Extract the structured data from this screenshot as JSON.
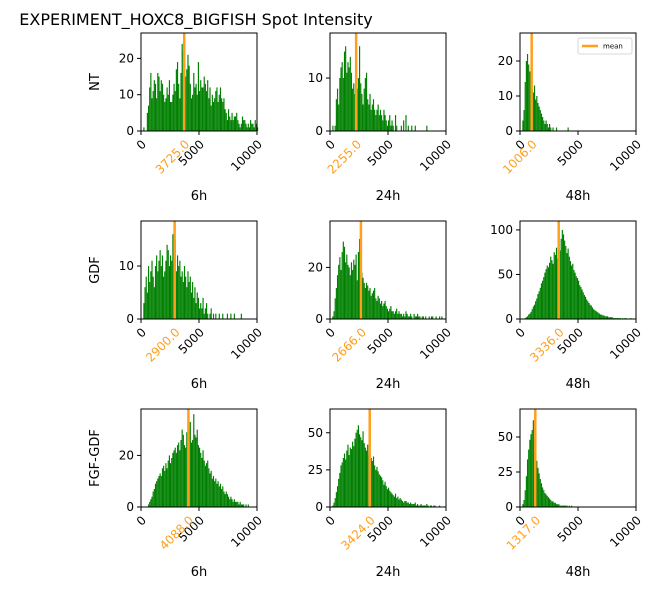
{
  "title": "EXPERIMENT_HOXC8_BIGFISH  Spot Intensity",
  "colors": {
    "bar": "#008000",
    "mean": "#ff9f1c",
    "text": "#000000",
    "axis": "#000000"
  },
  "legend": {
    "label": "mean",
    "placement": "upper-right",
    "panel": 2
  },
  "chart_data": [
    {
      "type": "bar",
      "row_label": "NT",
      "xlabel": "6h",
      "xlim": [
        0,
        10000
      ],
      "ylim": [
        0,
        27
      ],
      "xticks": [
        "0",
        "5000",
        "10000"
      ],
      "yticks": [
        0,
        10,
        20
      ],
      "mean": 3725.0,
      "mean_label": "3725.0",
      "bin_width": 100,
      "bin_start": 0,
      "values": [
        0,
        0,
        1,
        0,
        0,
        5,
        7,
        12,
        16,
        9,
        11,
        14,
        13,
        9,
        16,
        15,
        11,
        14,
        13,
        10,
        8,
        9,
        12,
        10,
        14,
        8,
        8,
        10,
        13,
        11,
        17,
        19,
        13,
        9,
        16,
        24,
        22,
        19,
        15,
        17,
        21,
        18,
        13,
        9,
        10,
        16,
        12,
        13,
        10,
        19,
        11,
        14,
        12,
        12,
        15,
        13,
        11,
        14,
        9,
        12,
        7,
        10,
        8,
        9,
        11,
        12,
        8,
        10,
        12,
        9,
        8,
        9,
        6,
        5,
        3,
        6,
        4,
        3,
        5,
        3,
        4,
        4,
        5,
        3,
        2,
        1,
        2,
        4,
        3,
        3,
        2,
        1,
        2,
        1,
        3,
        2,
        2,
        1,
        3,
        2,
        1
      ]
    },
    {
      "type": "bar",
      "row_label": "",
      "xlabel": "24h",
      "xlim": [
        0,
        10000
      ],
      "ylim": [
        0,
        18.5
      ],
      "xticks": [
        "0",
        "5000",
        "10000"
      ],
      "yticks": [
        0,
        10
      ],
      "mean": 2255.0,
      "mean_label": "2255.0",
      "bin_width": 100,
      "bin_start": 0,
      "values": [
        0,
        0,
        1,
        0,
        1,
        6,
        8,
        5,
        10,
        12,
        13,
        10,
        15,
        16,
        11,
        13,
        12,
        14,
        11,
        8,
        9,
        7,
        11,
        8,
        10,
        16,
        9,
        7,
        5,
        8,
        10,
        11,
        6,
        5,
        7,
        4,
        5,
        6,
        4,
        3,
        4,
        5,
        3,
        4,
        3,
        2,
        4,
        3,
        2,
        1,
        2,
        3,
        1,
        2,
        1,
        0,
        3,
        1,
        0,
        0,
        0,
        1,
        0,
        2,
        0,
        3,
        0,
        1,
        0,
        0,
        1,
        0,
        0,
        1,
        0,
        0,
        0,
        0,
        0,
        0,
        0,
        0,
        0,
        1,
        0,
        0,
        0,
        0,
        0,
        0,
        0,
        0,
        0,
        0,
        0,
        0,
        0,
        0,
        0,
        0,
        0
      ]
    },
    {
      "type": "bar",
      "row_label": "",
      "xlabel": "48h",
      "xlim": [
        0,
        10000
      ],
      "ylim": [
        0,
        28
      ],
      "xticks": [
        "0",
        "5000",
        "10000"
      ],
      "yticks": [
        0,
        10,
        20
      ],
      "mean": 1006.0,
      "mean_label": "1006.0",
      "bin_width": 100,
      "bin_start": 0,
      "values": [
        0,
        0,
        3,
        6,
        14,
        20,
        22,
        19,
        17,
        15,
        12,
        11,
        13,
        9,
        10,
        8,
        7,
        6,
        5,
        4,
        3,
        2,
        3,
        2,
        1,
        2,
        1,
        0,
        1,
        0,
        0,
        1,
        0,
        0,
        0,
        0,
        0,
        0,
        0,
        0,
        0,
        1,
        0,
        0,
        0,
        0,
        0,
        0,
        0,
        0,
        0,
        0,
        0,
        0,
        0,
        0,
        0,
        0,
        0,
        0,
        0,
        0,
        0,
        0,
        0,
        0,
        0,
        0,
        0,
        0,
        0,
        0,
        0,
        0,
        0,
        0,
        0,
        0,
        0,
        0,
        0,
        0,
        0,
        0,
        0,
        0,
        0,
        0,
        0,
        0,
        0,
        0,
        0,
        0,
        0,
        0,
        0,
        0,
        0,
        0,
        0
      ]
    },
    {
      "type": "bar",
      "row_label": "GDF",
      "xlabel": "6h",
      "xlim": [
        0,
        10000
      ],
      "ylim": [
        0,
        18.5
      ],
      "xticks": [
        "0",
        "5000",
        "10000"
      ],
      "yticks": [
        0,
        10
      ],
      "mean": 2900.0,
      "mean_label": "2900.0",
      "bin_width": 100,
      "bin_start": 0,
      "values": [
        0,
        0,
        3,
        6,
        8,
        5,
        10,
        7,
        9,
        11,
        8,
        6,
        10,
        12,
        9,
        11,
        13,
        10,
        12,
        8,
        9,
        11,
        14,
        13,
        10,
        12,
        11,
        16,
        17,
        15,
        9,
        12,
        10,
        11,
        8,
        9,
        7,
        10,
        8,
        6,
        9,
        7,
        8,
        5,
        7,
        4,
        6,
        3,
        5,
        4,
        2,
        3,
        2,
        4,
        1,
        2,
        3,
        1,
        0,
        1,
        2,
        0,
        1,
        0,
        1,
        0,
        0,
        1,
        0,
        0,
        1,
        0,
        0,
        0,
        1,
        0,
        0,
        1,
        0,
        0,
        1,
        0,
        0,
        0,
        0,
        0,
        1,
        0,
        0,
        0,
        0,
        0,
        0,
        0,
        0,
        0,
        0,
        0,
        0,
        0,
        0
      ]
    },
    {
      "type": "bar",
      "row_label": "",
      "xlabel": "24h",
      "xlim": [
        0,
        10000
      ],
      "ylim": [
        0,
        38
      ],
      "xticks": [
        "0",
        "5000",
        "10000"
      ],
      "yticks": [
        0,
        20
      ],
      "mean": 2666.0,
      "mean_label": "2666.0",
      "bin_width": 100,
      "bin_start": 0,
      "values": [
        0,
        0,
        1,
        3,
        8,
        12,
        17,
        21,
        24,
        19,
        26,
        30,
        28,
        22,
        25,
        21,
        20,
        17,
        22,
        19,
        23,
        21,
        25,
        15,
        26,
        31,
        24,
        18,
        16,
        14,
        12,
        14,
        13,
        11,
        12,
        9,
        10,
        11,
        12,
        8,
        7,
        9,
        8,
        6,
        7,
        5,
        6,
        7,
        5,
        4,
        3,
        4,
        5,
        3,
        3,
        2,
        3,
        4,
        2,
        3,
        2,
        2,
        1,
        2,
        1,
        3,
        2,
        1,
        1,
        2,
        1,
        0,
        2,
        1,
        1,
        2,
        1,
        1,
        0,
        1,
        1,
        0,
        1,
        0,
        0,
        1,
        0,
        1,
        1,
        0,
        0,
        1,
        0,
        0,
        1,
        0,
        1,
        0,
        0,
        0,
        0
      ]
    },
    {
      "type": "bar",
      "row_label": "",
      "xlabel": "48h",
      "xlim": [
        0,
        10000
      ],
      "ylim": [
        0,
        110
      ],
      "xticks": [
        "0",
        "5000",
        "10000"
      ],
      "yticks": [
        0,
        50,
        100
      ],
      "mean": 3336.0,
      "mean_label": "3336.0",
      "bin_width": 100,
      "bin_start": 0,
      "values": [
        0,
        0,
        0,
        0,
        1,
        2,
        3,
        5,
        6,
        8,
        11,
        14,
        16,
        20,
        23,
        28,
        31,
        35,
        40,
        43,
        47,
        52,
        56,
        60,
        58,
        63,
        70,
        66,
        62,
        75,
        72,
        80,
        68,
        65,
        77,
        90,
        100,
        95,
        88,
        82,
        74,
        79,
        70,
        65,
        60,
        62,
        55,
        52,
        48,
        46,
        43,
        38,
        36,
        33,
        30,
        27,
        25,
        22,
        20,
        18,
        16,
        15,
        13,
        11,
        10,
        9,
        8,
        7,
        6,
        5,
        5,
        4,
        4,
        3,
        3,
        3,
        2,
        2,
        2,
        2,
        1,
        1,
        1,
        1,
        1,
        1,
        1,
        0,
        1,
        0,
        1,
        1,
        0,
        0,
        0,
        1,
        0,
        0,
        0,
        0,
        0
      ]
    },
    {
      "type": "bar",
      "row_label": "FGF-GDF",
      "xlabel": "6h",
      "xlim": [
        0,
        10000
      ],
      "ylim": [
        0,
        38
      ],
      "xticks": [
        "0",
        "5000",
        "10000"
      ],
      "yticks": [
        0,
        20
      ],
      "mean": 4088.0,
      "mean_label": "4088.0",
      "bin_width": 100,
      "bin_start": 0,
      "values": [
        0,
        0,
        0,
        0,
        0,
        0,
        1,
        2,
        3,
        4,
        6,
        7,
        9,
        10,
        11,
        12,
        13,
        12,
        15,
        16,
        14,
        17,
        15,
        18,
        20,
        17,
        19,
        21,
        22,
        23,
        21,
        24,
        25,
        22,
        26,
        30,
        28,
        24,
        23,
        29,
        27,
        31,
        33,
        25,
        26,
        36,
        28,
        27,
        30,
        24,
        23,
        21,
        19,
        22,
        18,
        16,
        17,
        18,
        15,
        13,
        14,
        11,
        12,
        10,
        11,
        9,
        10,
        8,
        9,
        7,
        8,
        6,
        5,
        6,
        5,
        4,
        3,
        4,
        3,
        2,
        3,
        2,
        2,
        2,
        1,
        2,
        1,
        1,
        1,
        0,
        1,
        0,
        1,
        0,
        0,
        0,
        0,
        0,
        0,
        0,
        0
      ]
    },
    {
      "type": "bar",
      "row_label": "",
      "xlabel": "24h",
      "xlim": [
        0,
        10000
      ],
      "ylim": [
        0,
        66
      ],
      "xticks": [
        "0",
        "5000",
        "10000"
      ],
      "yticks": [
        0,
        25,
        50
      ],
      "mean": 3424.0,
      "mean_label": "3424.0",
      "bin_width": 100,
      "bin_start": 0,
      "values": [
        0,
        0,
        1,
        3,
        6,
        10,
        14,
        19,
        23,
        28,
        30,
        33,
        36,
        32,
        38,
        42,
        35,
        40,
        39,
        44,
        41,
        46,
        50,
        52,
        55,
        49,
        47,
        45,
        51,
        43,
        40,
        38,
        42,
        35,
        36,
        33,
        31,
        34,
        28,
        25,
        27,
        24,
        22,
        21,
        20,
        18,
        15,
        17,
        14,
        12,
        13,
        11,
        10,
        9,
        8,
        7,
        9,
        6,
        7,
        5,
        6,
        5,
        4,
        3,
        4,
        4,
        3,
        3,
        2,
        3,
        2,
        2,
        2,
        3,
        1,
        2,
        1,
        1,
        2,
        1,
        1,
        1,
        1,
        2,
        1,
        0,
        1,
        1,
        0,
        1,
        1,
        0,
        0,
        0,
        1,
        0,
        0,
        0,
        0,
        0,
        0
      ]
    },
    {
      "type": "bar",
      "row_label": "",
      "xlabel": "48h",
      "xlim": [
        0,
        10000
      ],
      "ylim": [
        0,
        70
      ],
      "xticks": [
        "0",
        "5000",
        "10000"
      ],
      "yticks": [
        0,
        25,
        50
      ],
      "mean": 1317.0,
      "mean_label": "1317.0",
      "bin_width": 100,
      "bin_start": 0,
      "values": [
        0,
        0,
        2,
        5,
        12,
        22,
        34,
        41,
        48,
        52,
        55,
        62,
        47,
        40,
        33,
        28,
        24,
        20,
        17,
        14,
        12,
        10,
        9,
        8,
        7,
        6,
        5,
        4,
        4,
        3,
        3,
        2,
        2,
        2,
        1,
        1,
        1,
        1,
        1,
        1,
        1,
        0,
        1,
        0,
        1,
        0,
        0,
        0,
        0,
        0,
        0,
        0,
        0,
        0,
        0,
        0,
        0,
        0,
        0,
        0,
        0,
        0,
        0,
        0,
        0,
        0,
        0,
        0,
        0,
        0,
        0,
        0,
        0,
        0,
        0,
        0,
        0,
        0,
        0,
        0,
        0,
        0,
        0,
        0,
        0,
        0,
        0,
        0,
        0,
        0,
        0,
        0,
        0,
        0,
        0,
        0,
        0,
        0,
        0,
        0,
        0
      ]
    }
  ]
}
